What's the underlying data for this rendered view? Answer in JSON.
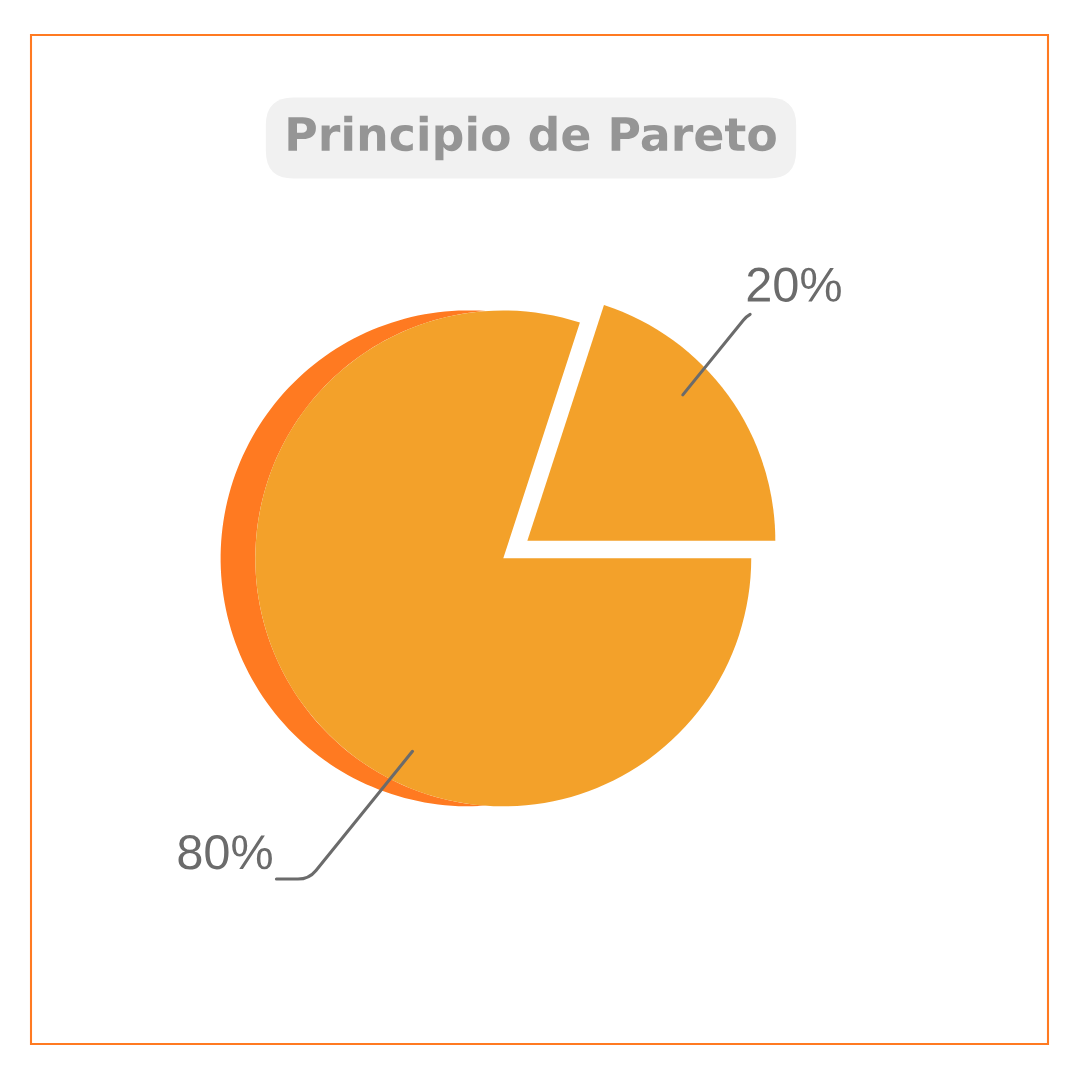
{
  "chart_data": {
    "type": "pie",
    "title": "Principio de Pareto",
    "categories": [
      null,
      null
    ],
    "values": [
      80,
      20
    ],
    "colors": [
      "#f3a12a",
      "#f3a12a"
    ],
    "value_labels": [
      "80%",
      "20%"
    ]
  }
}
